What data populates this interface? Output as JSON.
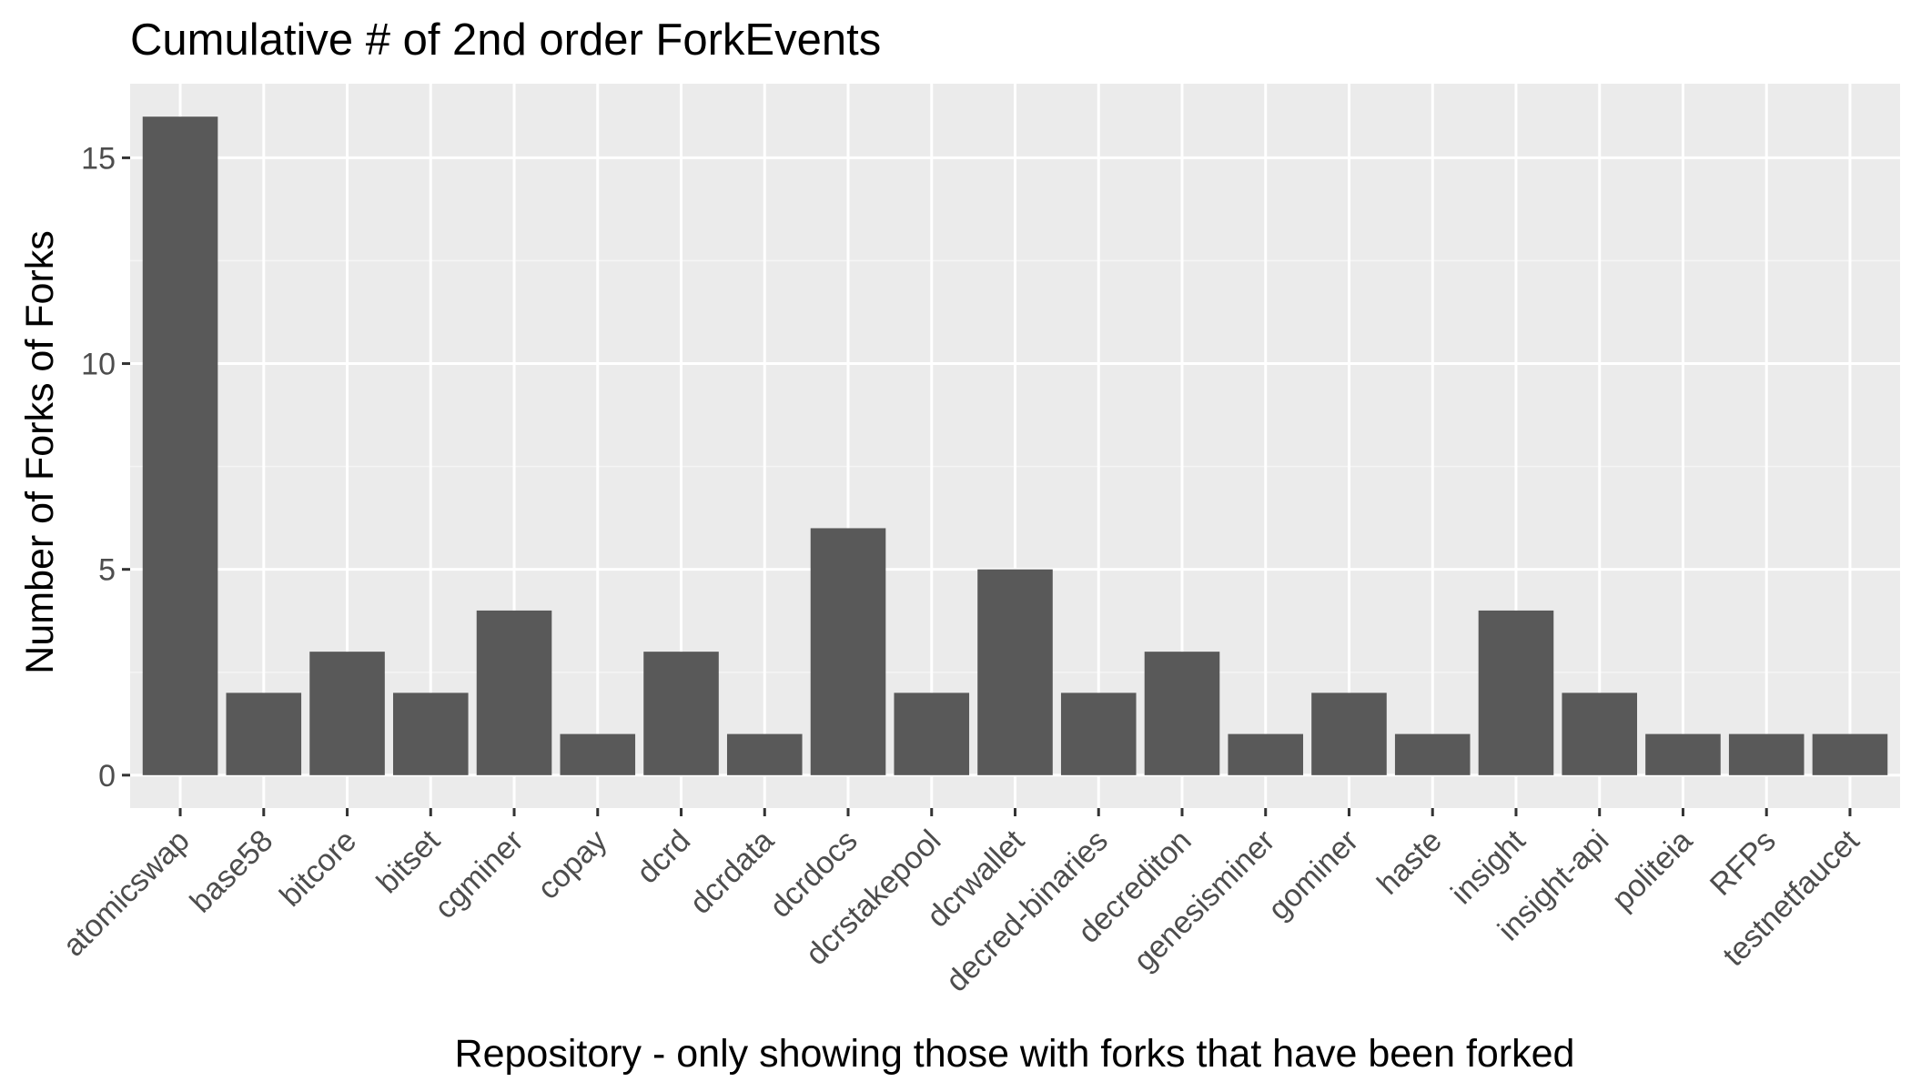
{
  "chart_data": {
    "type": "bar",
    "title": "Cumulative # of 2nd order ForkEvents",
    "xlabel": "Repository - only showing those with forks that have been forked",
    "ylabel": "Number of Forks of Forks",
    "categories": [
      "atomicswap",
      "base58",
      "bitcore",
      "bitset",
      "cgminer",
      "copay",
      "dcrd",
      "dcrdata",
      "dcrdocs",
      "dcrstakepool",
      "dcrwallet",
      "decred-binaries",
      "decrediton",
      "genesisminer",
      "gominer",
      "haste",
      "insight",
      "insight-api",
      "politeia",
      "RFPs",
      "testnetfaucet"
    ],
    "values": [
      16,
      2,
      3,
      2,
      4,
      1,
      3,
      1,
      6,
      2,
      5,
      2,
      3,
      1,
      2,
      1,
      4,
      2,
      1,
      1,
      1
    ],
    "ylim": [
      -0.8,
      16.8
    ],
    "yticks": [
      0,
      5,
      10,
      15
    ],
    "ytick_labels": [
      "0",
      "5",
      "10",
      "15"
    ],
    "grid": true,
    "legend": "none",
    "colors": {
      "bar": "#595959",
      "panel": "#ebebeb",
      "grid_major": "#ffffff",
      "grid_minor": "#f5f5f5",
      "tick_label": "#4d4d4d",
      "tick_mark": "#333333",
      "text": "#000000"
    }
  }
}
